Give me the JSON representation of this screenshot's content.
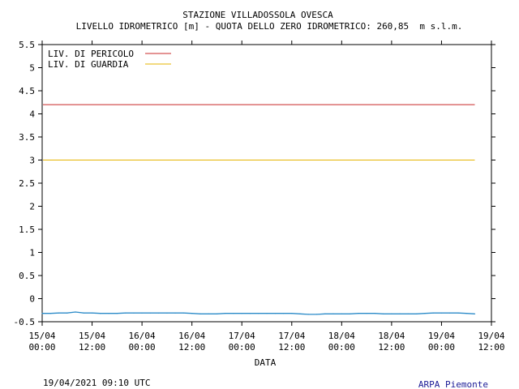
{
  "chart_data": {
    "type": "line",
    "title": "STAZIONE VILLADOSSOLA OVESCA",
    "subtitle": "LIVELLO IDROMETRICO [m] - QUOTA DELLO ZERO IDROMETRICO: 260,85  m s.l.m.",
    "xlabel": "DATA",
    "ylabel": "",
    "ylim": [
      -0.5,
      5.5
    ],
    "yticks": [
      "-0.5",
      "0",
      "0.5",
      "1",
      "1.5",
      "2",
      "2.5",
      "3",
      "3.5",
      "4",
      "4.5",
      "5",
      "5.5"
    ],
    "xticks": [
      {
        "day": "15/04",
        "time": "00:00"
      },
      {
        "day": "15/04",
        "time": "12:00"
      },
      {
        "day": "16/04",
        "time": "00:00"
      },
      {
        "day": "16/04",
        "time": "12:00"
      },
      {
        "day": "17/04",
        "time": "00:00"
      },
      {
        "day": "17/04",
        "time": "12:00"
      },
      {
        "day": "18/04",
        "time": "00:00"
      },
      {
        "day": "18/04",
        "time": "12:00"
      },
      {
        "day": "19/04",
        "time": "00:00"
      },
      {
        "day": "19/04",
        "time": "12:00"
      }
    ],
    "xlim_hours": [
      0,
      108
    ],
    "grid": false,
    "legend_position": "top-left",
    "thresholds": [
      {
        "name": "LIV. DI PERICOLO",
        "value": 4.2,
        "color": "#c82828"
      },
      {
        "name": "LIV. DI GUARDIA",
        "value": 3.0,
        "color": "#e6b400"
      }
    ],
    "series": [
      {
        "color": "#2a8ac8",
        "x_hours": [
          0,
          2,
          4,
          6,
          8,
          10,
          12,
          14,
          16,
          18,
          20,
          22,
          24,
          26,
          28,
          30,
          32,
          34,
          36,
          38,
          40,
          42,
          44,
          46,
          48,
          50,
          52,
          54,
          56,
          58,
          60,
          62,
          64,
          66,
          68,
          70,
          72,
          74,
          76,
          78,
          80,
          82,
          84,
          86,
          88,
          90,
          92,
          94,
          96,
          98,
          100,
          102,
          104
        ],
        "values": [
          -0.32,
          -0.32,
          -0.31,
          -0.31,
          -0.29,
          -0.31,
          -0.31,
          -0.32,
          -0.32,
          -0.32,
          -0.31,
          -0.31,
          -0.31,
          -0.31,
          -0.31,
          -0.31,
          -0.31,
          -0.31,
          -0.32,
          -0.33,
          -0.33,
          -0.33,
          -0.32,
          -0.32,
          -0.32,
          -0.32,
          -0.32,
          -0.32,
          -0.32,
          -0.32,
          -0.32,
          -0.33,
          -0.34,
          -0.34,
          -0.33,
          -0.33,
          -0.33,
          -0.33,
          -0.32,
          -0.32,
          -0.32,
          -0.33,
          -0.33,
          -0.33,
          -0.33,
          -0.33,
          -0.32,
          -0.31,
          -0.31,
          -0.31,
          -0.31,
          -0.32,
          -0.33
        ]
      }
    ]
  },
  "footer": {
    "timestamp": "19/04/2021 09:10 UTC",
    "source": "ARPA Piemonte"
  }
}
